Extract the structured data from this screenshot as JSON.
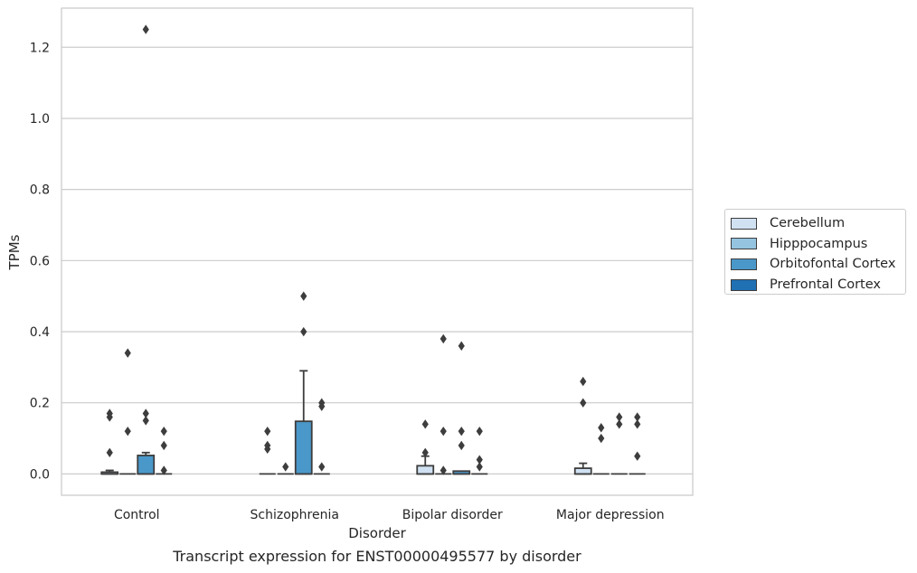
{
  "chart_data": {
    "type": "box",
    "title": "Transcript expression for ENST00000495577 by disorder",
    "xlabel": "Disorder",
    "ylabel": "TPMs",
    "ylim": [
      -0.06,
      1.31
    ],
    "yticks": [
      "0.0",
      "0.2",
      "0.4",
      "0.6",
      "0.8",
      "1.0",
      "1.2"
    ],
    "ytick_values": [
      0.0,
      0.2,
      0.4,
      0.6,
      0.8,
      1.0,
      1.2
    ],
    "grid": "horizontal",
    "legend_position": "right",
    "categories": [
      "Control",
      "Schizophrenia",
      "Bipolar disorder",
      "Major depression"
    ],
    "series": [
      {
        "name": "Cerebellum",
        "color": "#d0e1f2",
        "boxes": [
          {
            "q1": 0.0,
            "median": 0.0,
            "q3": 0.005,
            "whisker_low": 0.0,
            "whisker_high": 0.01,
            "outliers": [
              0.06,
              0.16,
              0.17
            ]
          },
          {
            "q1": 0.0,
            "median": 0.0,
            "q3": 0.0,
            "whisker_low": 0.0,
            "whisker_high": 0.0,
            "outliers": [
              0.07,
              0.08,
              0.12
            ]
          },
          {
            "q1": 0.0,
            "median": 0.0,
            "q3": 0.023,
            "whisker_low": 0.0,
            "whisker_high": 0.05,
            "outliers": [
              0.06,
              0.14
            ]
          },
          {
            "q1": 0.0,
            "median": 0.0,
            "q3": 0.016,
            "whisker_low": 0.0,
            "whisker_high": 0.03,
            "outliers": [
              0.2,
              0.26
            ]
          }
        ]
      },
      {
        "name": "Hipppocampus",
        "color": "#94c4df",
        "boxes": [
          {
            "q1": 0.0,
            "median": 0.0,
            "q3": 0.0,
            "whisker_low": 0.0,
            "whisker_high": 0.0,
            "outliers": [
              0.12,
              0.34
            ]
          },
          {
            "q1": 0.0,
            "median": 0.0,
            "q3": 0.0,
            "whisker_low": 0.0,
            "whisker_high": 0.0,
            "outliers": [
              0.02
            ]
          },
          {
            "q1": 0.0,
            "median": 0.0,
            "q3": 0.0,
            "whisker_low": 0.0,
            "whisker_high": 0.0,
            "outliers": [
              0.01,
              0.12,
              0.38
            ]
          },
          {
            "q1": 0.0,
            "median": 0.0,
            "q3": 0.0,
            "whisker_low": 0.0,
            "whisker_high": 0.0,
            "outliers": [
              0.1,
              0.13
            ]
          }
        ]
      },
      {
        "name": "Orbitofontal Cortex",
        "color": "#4a98c9",
        "boxes": [
          {
            "q1": 0.0,
            "median": 0.0,
            "q3": 0.052,
            "whisker_low": 0.0,
            "whisker_high": 0.06,
            "outliers": [
              0.15,
              0.17,
              1.25
            ]
          },
          {
            "q1": 0.0,
            "median": 0.0,
            "q3": 0.148,
            "whisker_low": 0.0,
            "whisker_high": 0.29,
            "outliers": [
              0.4,
              0.5
            ]
          },
          {
            "q1": 0.0,
            "median": 0.0,
            "q3": 0.008,
            "whisker_low": 0.0,
            "whisker_high": 0.008,
            "outliers": [
              0.08,
              0.12,
              0.36
            ]
          },
          {
            "q1": 0.0,
            "median": 0.0,
            "q3": 0.0,
            "whisker_low": 0.0,
            "whisker_high": 0.0,
            "outliers": [
              0.14,
              0.16
            ]
          }
        ]
      },
      {
        "name": "Prefrontal Cortex",
        "color": "#2070b4",
        "boxes": [
          {
            "q1": 0.0,
            "median": 0.0,
            "q3": 0.0,
            "whisker_low": 0.0,
            "whisker_high": 0.0,
            "outliers": [
              0.01,
              0.08,
              0.12
            ]
          },
          {
            "q1": 0.0,
            "median": 0.0,
            "q3": 0.0,
            "whisker_low": 0.0,
            "whisker_high": 0.0,
            "outliers": [
              0.02,
              0.19,
              0.2
            ]
          },
          {
            "q1": 0.0,
            "median": 0.0,
            "q3": 0.0,
            "whisker_low": 0.0,
            "whisker_high": 0.0,
            "outliers": [
              0.02,
              0.04,
              0.12
            ]
          },
          {
            "q1": 0.0,
            "median": 0.0,
            "q3": 0.0,
            "whisker_low": 0.0,
            "whisker_high": 0.0,
            "outliers": [
              0.05,
              0.14,
              0.16
            ]
          }
        ]
      }
    ]
  }
}
